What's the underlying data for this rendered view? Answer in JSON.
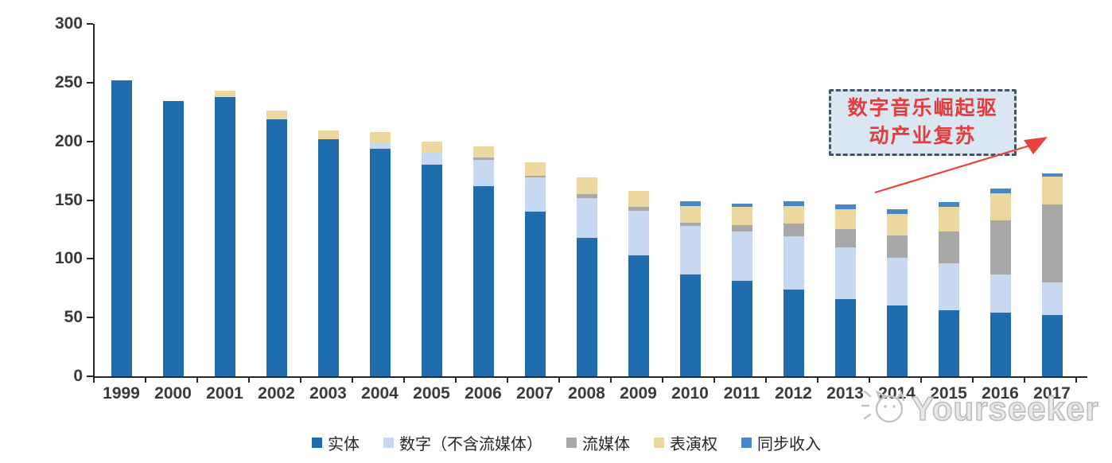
{
  "page": {
    "background": "#ffffff"
  },
  "chart_data": {
    "type": "bar",
    "stacked": true,
    "categories": [
      "1999",
      "2000",
      "2001",
      "2002",
      "2003",
      "2004",
      "2005",
      "2006",
      "2007",
      "2008",
      "2009",
      "2010",
      "2011",
      "2012",
      "2013",
      "2014",
      "2015",
      "2016",
      "2017"
    ],
    "series": [
      {
        "name": "实体",
        "color": "#1F6DAD",
        "values": [
          252,
          234,
          238,
          219,
          202,
          194,
          180,
          162,
          140,
          118,
          103,
          87,
          81,
          74,
          66,
          60,
          56,
          54,
          52
        ]
      },
      {
        "name": "数字（不含流媒体）",
        "color": "#C6D9F0",
        "values": [
          0,
          0,
          0,
          0,
          0,
          5,
          10,
          22,
          29,
          34,
          38,
          41,
          42,
          45,
          44,
          41,
          40,
          33,
          28
        ]
      },
      {
        "name": "流媒体",
        "color": "#A8A8A8",
        "values": [
          0,
          0,
          0,
          0,
          0,
          0,
          0,
          2,
          2,
          3,
          3,
          3,
          6,
          11,
          15,
          19,
          27,
          46,
          66
        ]
      },
      {
        "name": "表演权",
        "color": "#ECD89E",
        "values": [
          0,
          0,
          5,
          7,
          7,
          9,
          10,
          10,
          11,
          14,
          14,
          14,
          15,
          15,
          17,
          18,
          21,
          23,
          24
        ]
      },
      {
        "name": "同步收入",
        "color": "#4A86C6",
        "values": [
          0,
          0,
          0,
          0,
          0,
          0,
          0,
          0,
          0,
          0,
          0,
          4,
          3,
          4,
          4,
          4,
          4,
          4,
          3
        ]
      }
    ],
    "totals": [
      252,
      234,
      243,
      226,
      209,
      208,
      200,
      196,
      182,
      169,
      158,
      149,
      147,
      149,
      146,
      142,
      148,
      160,
      173
    ],
    "ylim": [
      0,
      300
    ],
    "yticks": [
      0,
      50,
      100,
      150,
      200,
      250,
      300
    ],
    "grid": false,
    "legend_position": "bottom"
  },
  "annotation": {
    "line1": "数字音乐崛起驱",
    "line2": "动产业复苏",
    "text_color": "#E23D3D",
    "border_color": "#44546A",
    "fill_color": "#DBE6F3",
    "arrow_color": "#E8433E"
  },
  "axis": {
    "line_color": "#262626",
    "label_color": "#3A3A3A"
  },
  "watermark": {
    "text": "Yourseeker"
  }
}
